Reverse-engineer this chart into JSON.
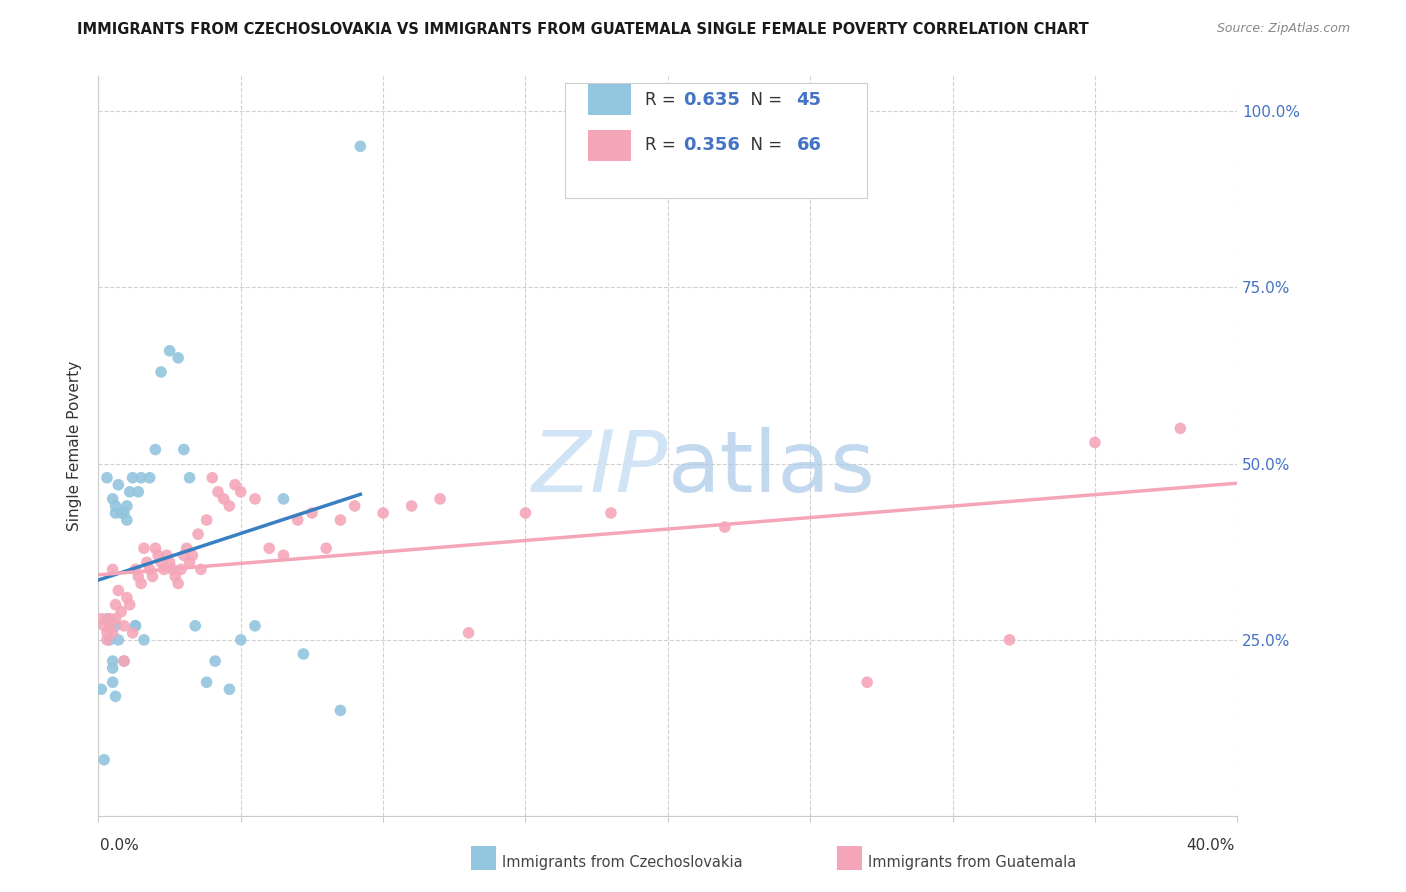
{
  "title": "IMMIGRANTS FROM CZECHOSLOVAKIA VS IMMIGRANTS FROM GUATEMALA SINGLE FEMALE POVERTY CORRELATION CHART",
  "source": "Source: ZipAtlas.com",
  "ylabel": "Single Female Poverty",
  "r_czech": 0.635,
  "n_czech": 45,
  "r_guate": 0.356,
  "n_guate": 66,
  "color_czech": "#92c5de",
  "color_guate": "#f4a6b8",
  "line_color_czech": "#3a7fc1",
  "line_color_guate": "#f4a6b8",
  "watermark_color": "#d0e4f5",
  "xlim": [
    0.0,
    0.4
  ],
  "ylim": [
    0.0,
    1.05
  ],
  "legend_color": "#4472C4",
  "czech_x": [
    0.001,
    0.002,
    0.003,
    0.004,
    0.004,
    0.005,
    0.005,
    0.005,
    0.005,
    0.006,
    0.006,
    0.006,
    0.007,
    0.007,
    0.008,
    0.009,
    0.009,
    0.01,
    0.011,
    0.012,
    0.013,
    0.014,
    0.015,
    0.016,
    0.018,
    0.02,
    0.022,
    0.025,
    0.028,
    0.03,
    0.032,
    0.034,
    0.038,
    0.041,
    0.046,
    0.05,
    0.055,
    0.065,
    0.072,
    0.085,
    0.092,
    0.003,
    0.006,
    0.01,
    0.013
  ],
  "czech_y": [
    0.18,
    0.08,
    0.28,
    0.27,
    0.25,
    0.22,
    0.21,
    0.45,
    0.19,
    0.43,
    0.17,
    0.27,
    0.47,
    0.25,
    0.43,
    0.43,
    0.22,
    0.42,
    0.46,
    0.48,
    0.27,
    0.46,
    0.48,
    0.25,
    0.48,
    0.52,
    0.63,
    0.66,
    0.65,
    0.52,
    0.48,
    0.27,
    0.19,
    0.22,
    0.18,
    0.25,
    0.27,
    0.45,
    0.23,
    0.15,
    0.95,
    0.48,
    0.44,
    0.44,
    0.27
  ],
  "guate_x": [
    0.001,
    0.002,
    0.003,
    0.003,
    0.004,
    0.004,
    0.005,
    0.005,
    0.006,
    0.006,
    0.007,
    0.008,
    0.009,
    0.009,
    0.01,
    0.011,
    0.012,
    0.013,
    0.014,
    0.015,
    0.016,
    0.017,
    0.018,
    0.019,
    0.02,
    0.021,
    0.022,
    0.023,
    0.024,
    0.025,
    0.026,
    0.027,
    0.028,
    0.029,
    0.03,
    0.031,
    0.032,
    0.033,
    0.035,
    0.036,
    0.038,
    0.04,
    0.042,
    0.044,
    0.046,
    0.048,
    0.05,
    0.055,
    0.06,
    0.065,
    0.07,
    0.075,
    0.08,
    0.085,
    0.09,
    0.1,
    0.11,
    0.12,
    0.13,
    0.15,
    0.18,
    0.22,
    0.27,
    0.32,
    0.35,
    0.38
  ],
  "guate_y": [
    0.28,
    0.27,
    0.26,
    0.25,
    0.28,
    0.27,
    0.26,
    0.35,
    0.3,
    0.28,
    0.32,
    0.29,
    0.27,
    0.22,
    0.31,
    0.3,
    0.26,
    0.35,
    0.34,
    0.33,
    0.38,
    0.36,
    0.35,
    0.34,
    0.38,
    0.37,
    0.36,
    0.35,
    0.37,
    0.36,
    0.35,
    0.34,
    0.33,
    0.35,
    0.37,
    0.38,
    0.36,
    0.37,
    0.4,
    0.35,
    0.42,
    0.48,
    0.46,
    0.45,
    0.44,
    0.47,
    0.46,
    0.45,
    0.38,
    0.37,
    0.42,
    0.43,
    0.38,
    0.42,
    0.44,
    0.43,
    0.44,
    0.45,
    0.26,
    0.43,
    0.43,
    0.41,
    0.19,
    0.25,
    0.53,
    0.55
  ]
}
